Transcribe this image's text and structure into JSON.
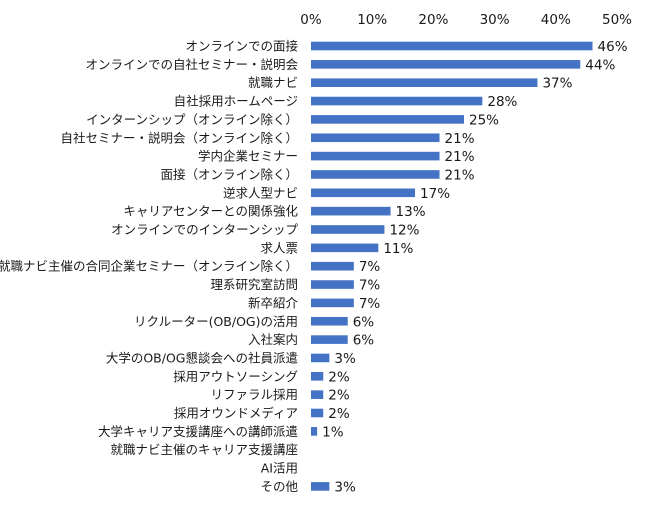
{
  "chart_data": {
    "type": "bar",
    "orientation": "horizontal",
    "title": "",
    "xlabel": "",
    "ylabel": "",
    "xlim": [
      0,
      50
    ],
    "x_ticks": [
      "0%",
      "10%",
      "20%",
      "30%",
      "40%",
      "50%"
    ],
    "x_axis_position": "top",
    "grid": false,
    "bar_color": "#4472c4",
    "value_suffix": "%",
    "categories": [
      "オンラインでの面接",
      "オンラインでの自社セミナー・説明会",
      "就職ナビ",
      "自社採用ホームページ",
      "インターンシップ（オンライン除く）",
      "自社セミナー・説明会（オンライン除く）",
      "学内企業セミナー",
      "面接（オンライン除く）",
      "逆求人型ナビ",
      "キャリアセンターとの関係強化",
      "オンラインでのインターンシップ",
      "求人票",
      "就職ナビ主催の合同企業セミナー（オンライン除く）",
      "理系研究室訪問",
      "新卒紹介",
      "リクルーター(OB/OG)の活用",
      "入社案内",
      "大学のOB/OG懇談会への社員派遣",
      "採用アウトソーシング",
      "リファラル採用",
      "採用オウンドメディア",
      "大学キャリア支援講座への講師派遣",
      "就職ナビ主催のキャリア支援講座",
      "AI活用",
      "その他"
    ],
    "values": [
      46,
      44,
      37,
      28,
      25,
      21,
      21,
      21,
      17,
      13,
      12,
      11,
      7,
      7,
      7,
      6,
      6,
      3,
      2,
      2,
      2,
      1,
      null,
      null,
      3
    ],
    "value_labels": [
      "46%",
      "44%",
      "37%",
      "28%",
      "25%",
      "21%",
      "21%",
      "21%",
      "17%",
      "13%",
      "12%",
      "11%",
      "7%",
      "7%",
      "7%",
      "6%",
      "6%",
      "3%",
      "2%",
      "2%",
      "2%",
      "1%",
      "",
      "",
      "3%"
    ]
  }
}
